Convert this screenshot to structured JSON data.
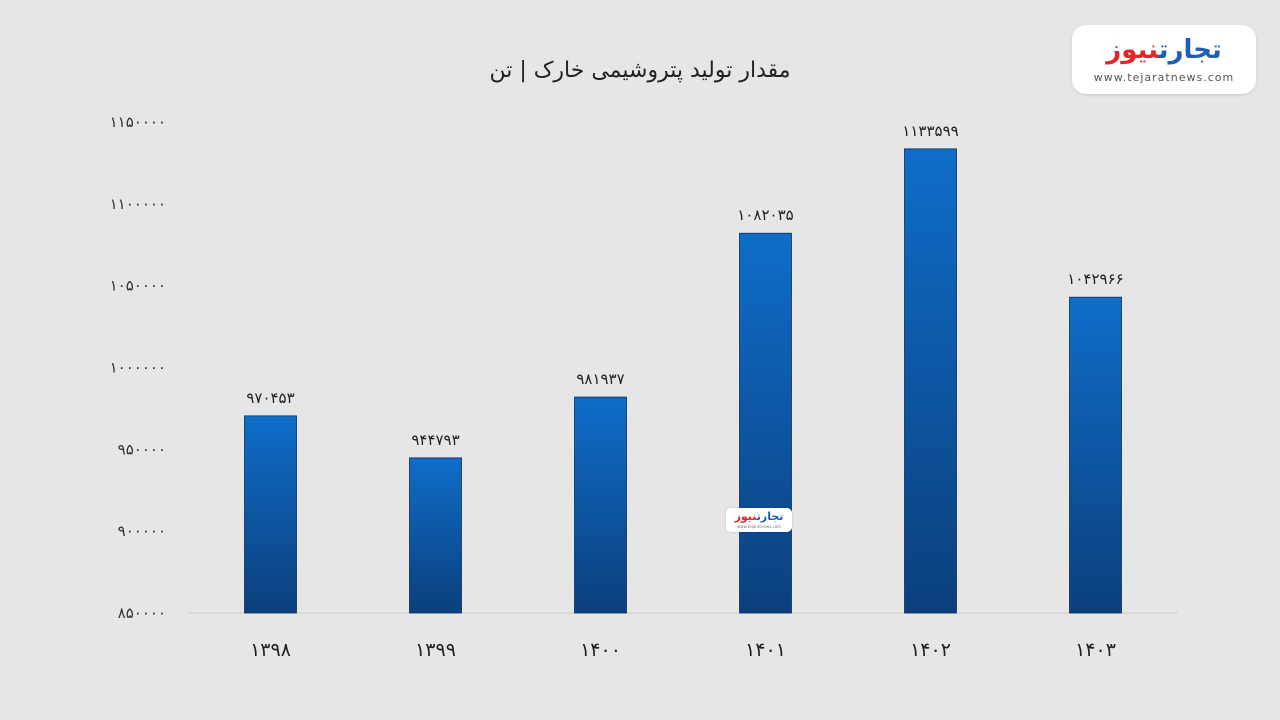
{
  "chart_data": {
    "type": "bar",
    "title": "مقدار تولید پتروشیمی خارک | تن",
    "categories": [
      "۱۳۹۸",
      "۱۳۹۹",
      "۱۴۰۰",
      "۱۴۰۱",
      "۱۴۰۲",
      "۱۴۰۳"
    ],
    "values": [
      970453,
      944793,
      981937,
      1082035,
      1133599,
      1042966
    ],
    "value_labels": [
      "۹۷۰۴۵۳",
      "۹۴۴۷۹۳",
      "۹۸۱۹۳۷",
      "۱۰۸۲۰۳۵",
      "۱۱۳۳۵۹۹",
      "۱۰۴۲۹۶۶"
    ],
    "ylim": [
      850000,
      1150000
    ],
    "yticks": [
      850000,
      900000,
      950000,
      1000000,
      1050000,
      1100000,
      1150000
    ],
    "ytick_labels": [
      "۸۵۰۰۰۰",
      "۹۰۰۰۰۰",
      "۹۵۰۰۰۰",
      "۱۰۰۰۰۰۰",
      "۱۰۵۰۰۰۰",
      "۱۱۰۰۰۰۰",
      "۱۱۵۰۰۰۰"
    ],
    "xlabel": "",
    "ylabel": "",
    "grid": false,
    "bar_color_top": "#0f6dc9",
    "bar_color_bottom": "#0b3f7c"
  },
  "branding": {
    "logo_part1": "تجارت",
    "logo_part2": "نیوز",
    "logo_url": "www.tejaratnews.com",
    "color_blue": "#1e5fb4",
    "color_red": "#e3262c"
  }
}
